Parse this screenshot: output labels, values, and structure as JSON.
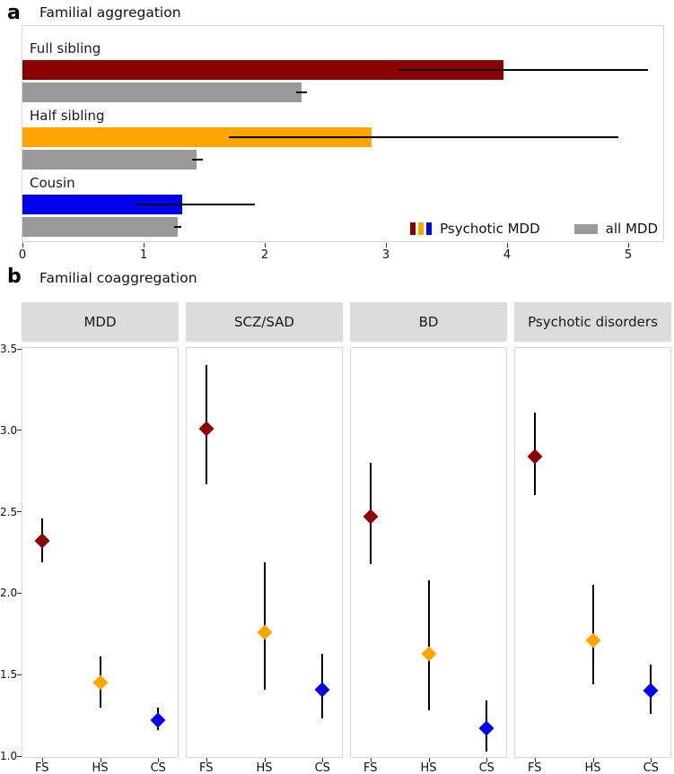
{
  "figure": {
    "panel_a": {
      "tag": "a",
      "title": "Familial aggregation",
      "legend": {
        "psychotic_label": "Psychotic MDD",
        "all_label": "all MDD"
      }
    },
    "panel_b": {
      "tag": "b",
      "title": "Familial coaggregation"
    }
  },
  "colors": {
    "psychotic_fs_red": "#8B0000",
    "psychotic_hs_orange": "#FFA500",
    "psychotic_cs_blue": "#0000EE",
    "all_mdd_gray": "#999999",
    "facet_header_bg": "#DCDCDC",
    "panel_border": "#D6D6D6",
    "error_bar_black": "#000000"
  },
  "chart_data": [
    {
      "type": "bar",
      "panel": "a",
      "title": "Familial aggregation",
      "orientation": "horizontal",
      "categories": [
        "Full sibling",
        "Half sibling",
        "Cousin"
      ],
      "series": [
        {
          "name": "Psychotic MDD",
          "values": [
            3.97,
            2.88,
            1.32
          ],
          "ci_low": [
            3.1,
            1.7,
            0.93
          ],
          "ci_high": [
            5.16,
            4.92,
            1.92
          ],
          "colors": [
            "#8B0000",
            "#FFA500",
            "#0000EE"
          ]
        },
        {
          "name": "all MDD",
          "values": [
            2.3,
            1.44,
            1.28
          ],
          "ci_low": [
            2.26,
            1.4,
            1.25
          ],
          "ci_high": [
            2.35,
            1.49,
            1.31
          ],
          "colors": [
            "#999999",
            "#999999",
            "#999999"
          ]
        }
      ],
      "xlabel": "",
      "ylabel": "",
      "xlim": [
        0,
        5.3
      ],
      "xticks": [
        "0",
        "1",
        "2",
        "3",
        "4",
        "5"
      ],
      "grid": false,
      "legend_position": "bottom-right"
    },
    {
      "type": "scatter",
      "panel": "b",
      "title": "Familial coaggregation",
      "marker": "diamond",
      "categories": [
        "FS",
        "HS",
        "CS"
      ],
      "point_colors": {
        "FS": "#8B0000",
        "HS": "#FFA500",
        "CS": "#0000EE"
      },
      "ylim": [
        1.0,
        3.5
      ],
      "yticks": [
        "1.0",
        "1.5",
        "2.0",
        "2.5",
        "3.0",
        "3.5"
      ],
      "grid": false,
      "facets": [
        {
          "label": "MDD",
          "values": [
            2.32,
            1.45,
            1.22
          ],
          "ci_low": [
            2.19,
            1.3,
            1.16
          ],
          "ci_high": [
            2.46,
            1.61,
            1.3
          ]
        },
        {
          "label": "SCZ/SAD",
          "values": [
            3.01,
            1.76,
            1.41
          ],
          "ci_low": [
            2.67,
            1.41,
            1.23
          ],
          "ci_high": [
            3.4,
            2.19,
            1.63
          ]
        },
        {
          "label": "BD",
          "values": [
            2.47,
            1.63,
            1.17
          ],
          "ci_low": [
            2.18,
            1.28,
            1.03
          ],
          "ci_high": [
            2.8,
            2.08,
            1.34
          ]
        },
        {
          "label": "Psychotic disorders",
          "values": [
            2.84,
            1.71,
            1.4
          ],
          "ci_low": [
            2.6,
            1.44,
            1.26
          ],
          "ci_high": [
            3.11,
            2.05,
            1.56
          ]
        }
      ]
    }
  ]
}
